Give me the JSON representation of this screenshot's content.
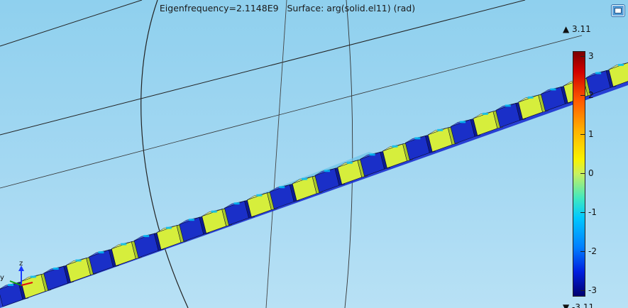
{
  "plot": {
    "title": "Eigenfrequency=2.1148E9   Surface: arg(solid.el11) (rad)"
  },
  "legend": {
    "max_label": "▲ 3.11",
    "min_label": "▼ -3.11",
    "ticks": [
      "3",
      "2",
      "1",
      "0",
      "-1",
      "-2",
      "-3"
    ],
    "colors": [
      "#7a0000",
      "#ff5a00",
      "#f8f200",
      "#40e8c0",
      "#0080ff",
      "#000070"
    ]
  },
  "axes": {
    "z_label": "z",
    "y_label": "y"
  },
  "toolbar": {
    "icon": "window-restore-icon"
  }
}
